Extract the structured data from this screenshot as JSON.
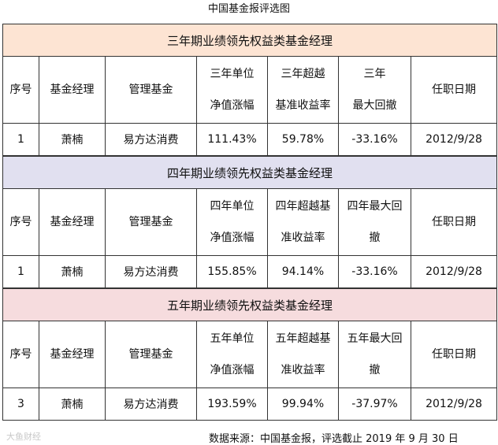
{
  "page_title": "中国基金报评选图",
  "tables": [
    {
      "title": "三年期业绩领先权益类基金经理",
      "headers": {
        "seq": "序号",
        "manager": "基金经理",
        "fund": "管理基金",
        "nav_l1": "三年单位",
        "nav_l2": "净值涨幅",
        "excess_l1": "三年超越",
        "excess_l2": "基准收益率",
        "dd_l1": "三年",
        "dd_l2": "最大回撤",
        "date": "任职日期"
      },
      "row": {
        "seq": "1",
        "manager": "萧楠",
        "fund": "易方达消费",
        "nav": "111.43%",
        "excess": "59.78%",
        "dd": "-33.16%",
        "date": "2012/9/28"
      }
    },
    {
      "title": "四年期业绩领先权益类基金经理",
      "headers": {
        "seq": "序号",
        "manager": "基金经理",
        "fund": "管理基金",
        "nav_l1": "四年单位",
        "nav_l2": "净值涨幅",
        "excess_l1": "四年超越基",
        "excess_l2": "准收益率",
        "dd_l1": "四年最大回",
        "dd_l2": "撤",
        "date": "任职日期"
      },
      "row": {
        "seq": "1",
        "manager": "萧楠",
        "fund": "易方达消费",
        "nav": "155.85%",
        "excess": "94.14%",
        "dd": "-33.16%",
        "date": "2012/9/28"
      }
    },
    {
      "title": "五年期业绩领先权益类基金经理",
      "headers": {
        "seq": "序号",
        "manager": "基金经理",
        "fund": "管理基金",
        "nav_l1": "五年单位",
        "nav_l2": "净值涨幅",
        "excess_l1": "五年超越基",
        "excess_l2": "准收益率",
        "dd_l1": "五年最大回",
        "dd_l2": "撤",
        "date": "任职日期"
      },
      "row": {
        "seq": "3",
        "manager": "萧楠",
        "fund": "易方达消费",
        "nav": "193.59%",
        "excess": "99.94%",
        "dd": "-37.97%",
        "date": "2012/9/28"
      }
    }
  ],
  "footer": "数据来源：中国基金报，评选截止 2019 年 9 月 30 日",
  "watermark": "大鱼财经"
}
